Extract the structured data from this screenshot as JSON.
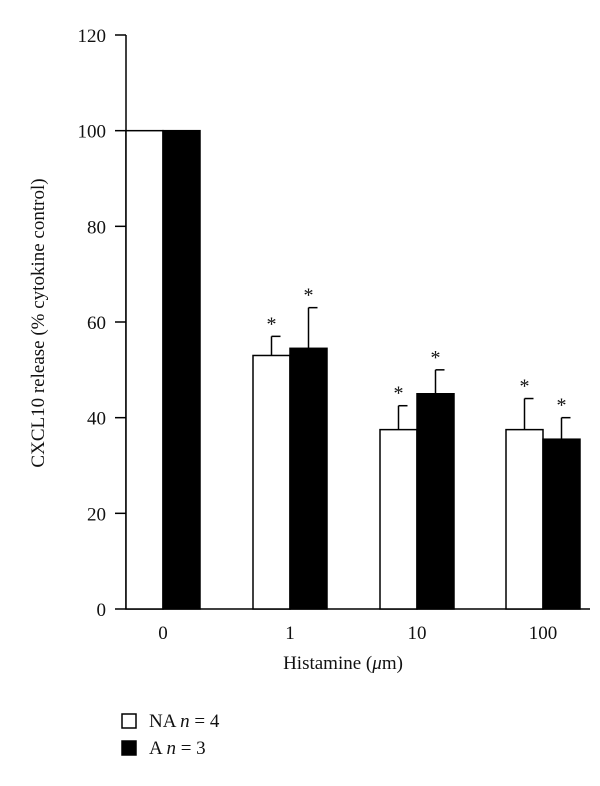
{
  "chart_data": {
    "type": "bar",
    "xlabel": "Histamine (μm)",
    "ylabel": "CXCL10 release (% cytokine control)",
    "ylim": [
      0,
      120
    ],
    "yticks": [
      0,
      20,
      40,
      60,
      80,
      100,
      120
    ],
    "categories": [
      "0",
      "1",
      "10",
      "100"
    ],
    "series": [
      {
        "name": "NA n = 4",
        "fill": "#ffffff",
        "values": [
          100,
          53,
          37.5,
          37.5
        ],
        "error": [
          0,
          4,
          5,
          6.5
        ],
        "significant": [
          false,
          true,
          true,
          true
        ]
      },
      {
        "name": "A n = 3",
        "fill": "#000000",
        "values": [
          100,
          54.5,
          45,
          35.5
        ],
        "error": [
          0,
          8.5,
          5,
          4.5
        ],
        "significant": [
          false,
          true,
          true,
          true
        ]
      }
    ],
    "significance_marker": "*",
    "legend_position": "bottom-left",
    "grid": false
  },
  "legend": {
    "items": [
      {
        "label": "NA",
        "italic": "n",
        "value": "= 4",
        "swatch": "#ffffff"
      },
      {
        "label": "A",
        "italic": "n",
        "value": "= 3",
        "swatch": "#000000"
      }
    ]
  },
  "xlabel_parts": {
    "before": "Histamine (",
    "italic": "μ",
    "after": "m)"
  }
}
